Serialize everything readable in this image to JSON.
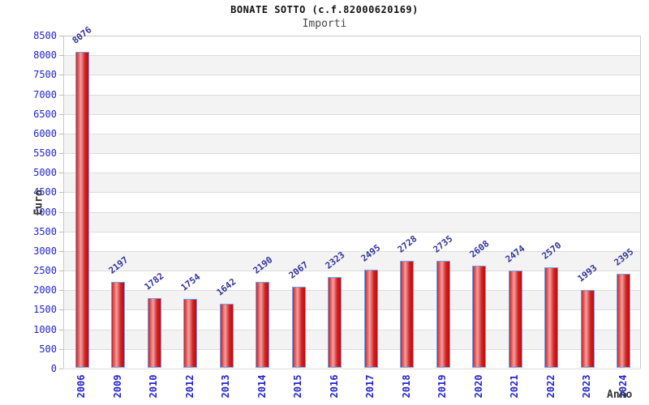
{
  "chart_data": {
    "type": "bar",
    "title": "BONATE SOTTO (c.f.82000620169)",
    "subtitle": "Importi",
    "xlabel": "Anno",
    "ylabel": "Euro",
    "categories": [
      "2006",
      "2009",
      "2010",
      "2012",
      "2013",
      "2014",
      "2015",
      "2016",
      "2017",
      "2018",
      "2019",
      "2020",
      "2021",
      "2022",
      "2023",
      "2024"
    ],
    "values": [
      8076,
      2197,
      1782,
      1754,
      1642,
      2190,
      2067,
      2323,
      2495,
      2728,
      2735,
      2608,
      2474,
      2570,
      1993,
      2395
    ],
    "ylim": [
      0,
      8500
    ],
    "ytick_step": 500,
    "grid": true,
    "legend": "none",
    "colors": {
      "bar_fill_edge": "#d42020",
      "bar_fill_highlight": "#f2a0a0",
      "bar_fill_dark": "#bb0e0e",
      "bar_border": "#6fa0e8",
      "axis_tick_label": "#2323cd",
      "value_label": "#333399",
      "band_shade": "#f3f3f3",
      "gridline": "#dcdcdc",
      "axis_title": "#333333"
    }
  }
}
